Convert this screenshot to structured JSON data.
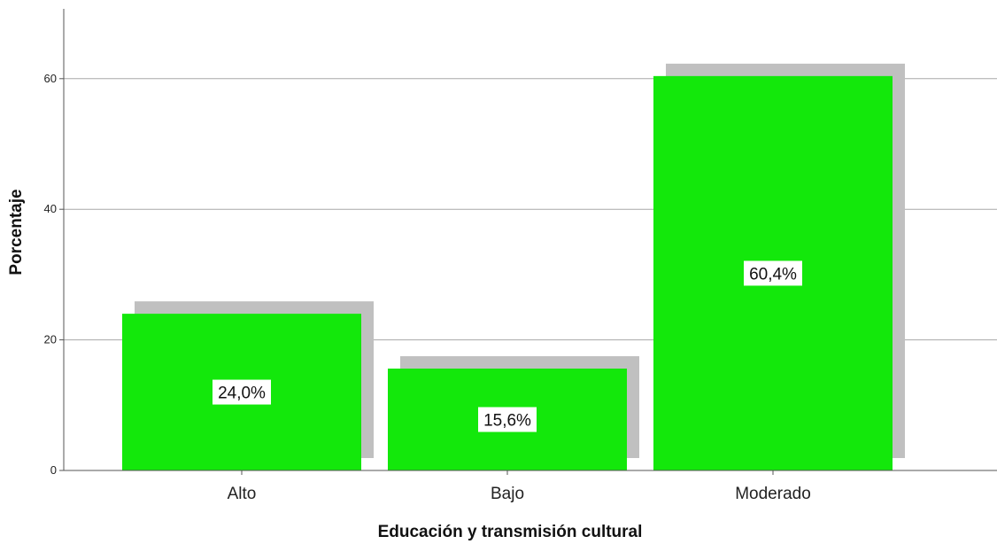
{
  "chart_data": {
    "type": "bar",
    "categories": [
      "Alto",
      "Bajo",
      "Moderado"
    ],
    "values": [
      24.0,
      15.6,
      60.4
    ],
    "data_labels": [
      "24,0%",
      "15,6%",
      "60,4%"
    ],
    "title": "",
    "xlabel": "Educación y transmisión cultural",
    "ylabel": "Porcentaje",
    "ylim": [
      0,
      70
    ],
    "yticks": [
      0,
      20,
      40,
      60
    ],
    "grid": true,
    "bar_color": "#13e80b",
    "shadow_color": "#c0c0c0"
  }
}
